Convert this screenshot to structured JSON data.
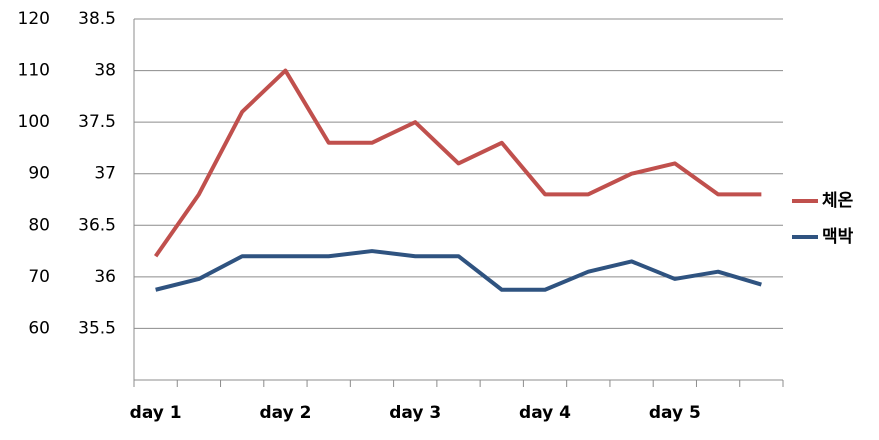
{
  "chart_data": {
    "type": "line",
    "categories": [
      "day 1",
      null,
      null,
      "day 2",
      null,
      null,
      "day 3",
      null,
      null,
      "day 4",
      null,
      null,
      "day 5",
      null,
      null
    ],
    "series": [
      {
        "name": "체온",
        "color": "#c0504d",
        "values": [
          36.2,
          36.8,
          37.6,
          38.0,
          37.3,
          37.3,
          37.5,
          37.1,
          37.3,
          36.8,
          36.8,
          37.0,
          37.1,
          36.8,
          36.8
        ]
      },
      {
        "name": "맥박",
        "color": "#2f5380",
        "axis": "y2",
        "values": [
          67.5,
          69.6,
          74,
          74,
          74,
          75,
          74,
          74,
          67.5,
          67.5,
          71,
          73,
          69.6,
          71,
          68.5
        ]
      }
    ],
    "ylim": [
      35,
      38.5
    ],
    "yticks": [
      35.5,
      36,
      36.5,
      37,
      37.5,
      38,
      38.5
    ],
    "y2lim": [
      50,
      120
    ],
    "y2ticks": [
      60,
      70,
      80,
      90,
      100,
      110,
      120
    ],
    "grid": true,
    "legend": "right"
  }
}
